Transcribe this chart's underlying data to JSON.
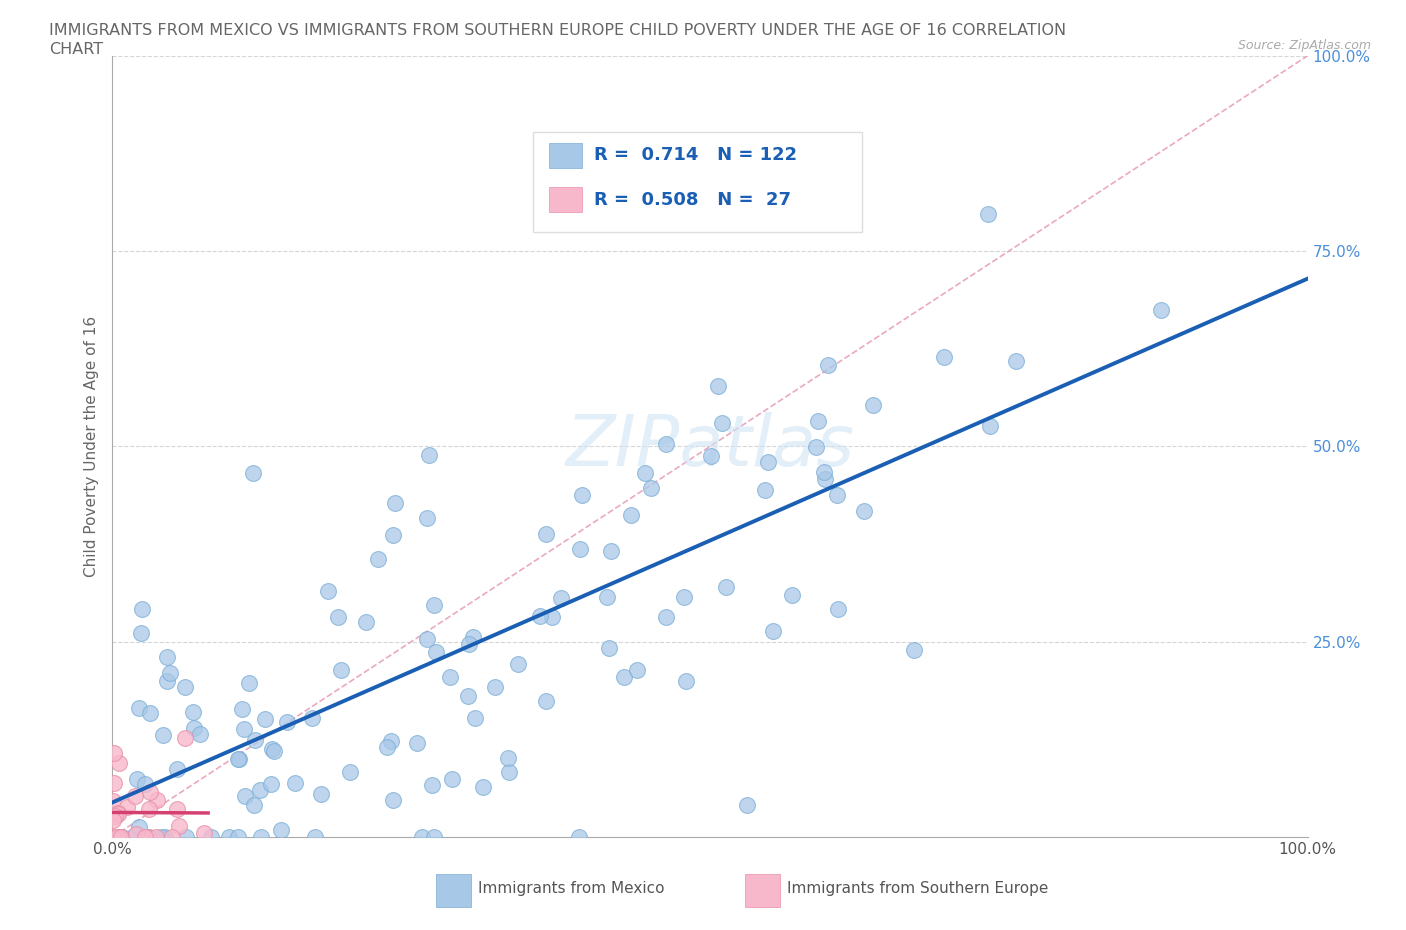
{
  "title_line1": "IMMIGRANTS FROM MEXICO VS IMMIGRANTS FROM SOUTHERN EUROPE CHILD POVERTY UNDER THE AGE OF 16 CORRELATION",
  "title_line2": "CHART",
  "source": "Source: ZipAtlas.com",
  "ylabel": "Child Poverty Under the Age of 16",
  "watermark": "ZIPatlas",
  "series1_label": "Immigrants from Mexico",
  "series2_label": "Immigrants from Southern Europe",
  "series1_color": "#a8c8e8",
  "series1_edge_color": "#7aaed6",
  "series1_line_color": "#1a5fb4",
  "series2_color": "#f8b8cc",
  "series2_edge_color": "#e890a8",
  "series2_line_color": "#d44070",
  "series1_R": 0.714,
  "series1_N": 122,
  "series2_R": 0.508,
  "series2_N": 27,
  "xlim": [
    0,
    1
  ],
  "ylim": [
    0,
    1
  ],
  "background_color": "#ffffff",
  "grid_color": "#cccccc",
  "title_color": "#666666",
  "tick_color": "#4a90d9",
  "title_fontsize": 11.5,
  "ref_line_color": "#e8a0b8",
  "ref_line_style": "--"
}
